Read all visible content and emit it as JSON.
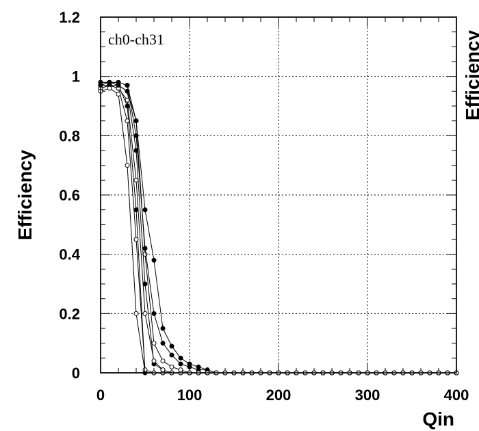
{
  "chart_data": {
    "type": "line",
    "xlabel": "Qin",
    "ylabel": "Efficiency",
    "xlim": [
      0,
      400
    ],
    "ylim": [
      0,
      1.2
    ],
    "grid": true,
    "x_ticks": [
      "0",
      "100",
      "200",
      "300",
      "400"
    ],
    "y_ticks": [
      "0",
      "0.2",
      "0.4",
      "0.6",
      "0.8",
      "1",
      "1.2"
    ],
    "annotation": "ch0-ch31",
    "clipped_neighbor_ylabel": "Efficiency",
    "x": [
      0,
      10,
      20,
      30,
      40,
      50,
      60,
      70,
      80,
      90,
      100,
      110,
      120,
      130,
      140,
      150,
      160,
      170,
      180,
      190,
      200,
      210,
      220,
      230,
      240,
      250,
      260,
      270,
      280,
      290,
      300,
      310,
      320,
      330,
      340,
      350,
      360,
      370,
      380,
      390,
      400
    ],
    "series": [
      {
        "values": [
          0.97,
          0.98,
          0.97,
          0.9,
          0.55,
          0.0,
          0.0,
          0.0,
          0.0,
          0.0,
          0.0,
          0.0,
          0.0,
          0.0,
          0.0,
          0.0,
          0.0,
          0.0,
          0.0,
          0.0,
          0.0,
          0.0,
          0.0,
          0.0,
          0.0,
          0.0,
          0.0,
          0.0,
          0.0,
          0.0,
          0.0,
          0.0,
          0.0,
          0.0,
          0.0,
          0.0,
          0.0,
          0.0,
          0.0,
          0.0,
          0.0
        ]
      },
      {
        "values": [
          0.96,
          0.97,
          0.96,
          0.85,
          0.45,
          0.01,
          0.0,
          0.0,
          0.0,
          0.0,
          0.0,
          0.0,
          0.0,
          0.0,
          0.0,
          0.0,
          0.0,
          0.0,
          0.0,
          0.0,
          0.0,
          0.0,
          0.0,
          0.0,
          0.0,
          0.0,
          0.0,
          0.0,
          0.0,
          0.0,
          0.0,
          0.0,
          0.0,
          0.0,
          0.0,
          0.0,
          0.0,
          0.0,
          0.0,
          0.0,
          0.0
        ]
      },
      {
        "values": [
          0.98,
          0.98,
          0.97,
          0.95,
          0.75,
          0.3,
          0.03,
          0.01,
          0.0,
          0.0,
          0.0,
          0.0,
          0.0,
          0.0,
          0.0,
          0.0,
          0.0,
          0.0,
          0.0,
          0.0,
          0.0,
          0.0,
          0.0,
          0.0,
          0.0,
          0.0,
          0.0,
          0.0,
          0.0,
          0.0,
          0.0,
          0.0,
          0.0,
          0.0,
          0.0,
          0.0,
          0.0,
          0.0,
          0.0,
          0.0,
          0.0
        ]
      },
      {
        "values": [
          0.97,
          0.98,
          0.98,
          0.97,
          0.85,
          0.4,
          0.1,
          0.04,
          0.02,
          0.01,
          0.0,
          0.0,
          0.0,
          0.0,
          0.0,
          0.0,
          0.0,
          0.0,
          0.0,
          0.0,
          0.0,
          0.0,
          0.0,
          0.0,
          0.0,
          0.0,
          0.0,
          0.0,
          0.0,
          0.0,
          0.0,
          0.0,
          0.0,
          0.0,
          0.0,
          0.0,
          0.0,
          0.0,
          0.0,
          0.0,
          0.0
        ]
      },
      {
        "values": [
          0.98,
          0.98,
          0.98,
          0.97,
          0.8,
          0.42,
          0.2,
          0.1,
          0.06,
          0.03,
          0.02,
          0.01,
          0.01,
          0.0,
          0.0,
          0.0,
          0.0,
          0.0,
          0.0,
          0.0,
          0.0,
          0.0,
          0.0,
          0.0,
          0.0,
          0.0,
          0.0,
          0.0,
          0.0,
          0.0,
          0.0,
          0.0,
          0.0,
          0.0,
          0.0,
          0.0,
          0.0,
          0.0,
          0.0,
          0.0,
          0.0
        ]
      },
      {
        "values": [
          0.96,
          0.97,
          0.96,
          0.92,
          0.65,
          0.2,
          0.04,
          0.01,
          0.0,
          0.0,
          0.0,
          0.0,
          0.0,
          0.0,
          0.0,
          0.0,
          0.0,
          0.0,
          0.0,
          0.0,
          0.0,
          0.0,
          0.0,
          0.0,
          0.0,
          0.0,
          0.0,
          0.0,
          0.0,
          0.0,
          0.0,
          0.0,
          0.0,
          0.0,
          0.0,
          0.0,
          0.0,
          0.0,
          0.0,
          0.0,
          0.0
        ]
      },
      {
        "values": [
          0.97,
          0.97,
          0.97,
          0.95,
          0.85,
          0.55,
          0.38,
          0.15,
          0.09,
          0.05,
          0.03,
          0.02,
          0.01,
          0.0,
          0.0,
          0.0,
          0.0,
          0.0,
          0.0,
          0.0,
          0.0,
          0.0,
          0.0,
          0.0,
          0.0,
          0.0,
          0.0,
          0.0,
          0.0,
          0.0,
          0.0,
          0.0,
          0.0,
          0.0,
          0.0,
          0.0,
          0.0,
          0.0,
          0.0,
          0.0,
          0.0
        ]
      },
      {
        "values": [
          0.95,
          0.96,
          0.94,
          0.7,
          0.2,
          0.0,
          0.0,
          0.0,
          0.0,
          0.0,
          0.0,
          0.0,
          0.0,
          0.0,
          0.0,
          0.0,
          0.0,
          0.0,
          0.0,
          0.0,
          0.0,
          0.0,
          0.0,
          0.0,
          0.0,
          0.0,
          0.0,
          0.0,
          0.0,
          0.0,
          0.0,
          0.0,
          0.0,
          0.0,
          0.0,
          0.0,
          0.0,
          0.0,
          0.0,
          0.0,
          0.0
        ]
      }
    ],
    "flat_series_markers_from_x": 100
  }
}
